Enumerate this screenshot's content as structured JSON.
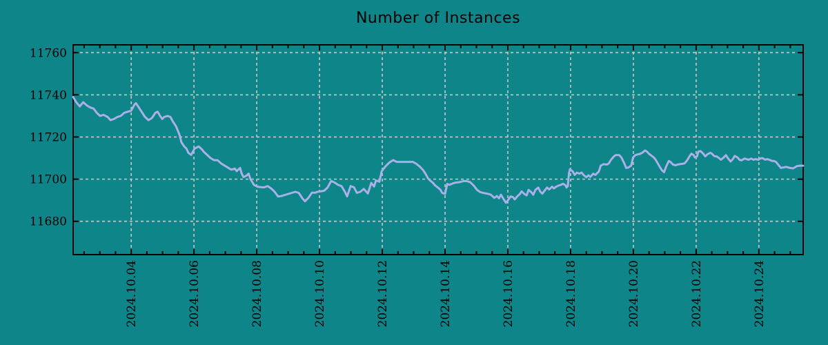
{
  "page": {
    "title": "Number of Instances"
  },
  "colors": {
    "background": "#0e8588",
    "line": "#aab0e8",
    "grid": "#c9c9c9",
    "axis": "#000000",
    "text": "#000000"
  },
  "chart_data": {
    "type": "line",
    "title": "Number of Instances",
    "xlabel": "",
    "ylabel": "",
    "grid": true,
    "legend_position": "none",
    "x_axis": {
      "unit": "date",
      "tick_labels": [
        "2024.10.04",
        "2024.10.06",
        "2024.10.08",
        "2024.10.10",
        "2024.10.12",
        "2024.10.14",
        "2024.10.16",
        "2024.10.18",
        "2024.10.20",
        "2024.10.22",
        "2024.10.24"
      ],
      "tick_days": [
        4,
        6,
        8,
        10,
        12,
        14,
        16,
        18,
        20,
        22,
        24
      ],
      "minor_tick_step_days": 0.5,
      "xlim_days": [
        2.15,
        25.41
      ]
    },
    "y_axis": {
      "tick_labels": [
        "11680",
        "11700",
        "11720",
        "11740",
        "11760"
      ],
      "ticks": [
        11680,
        11700,
        11720,
        11740,
        11760
      ],
      "ylim": [
        11664.2,
        11763.7
      ]
    },
    "series": [
      {
        "name": "Number of Instances",
        "color": "#aab0e8",
        "points_day_value": [
          [
            2.15,
            11739
          ],
          [
            2.25,
            11736.5
          ],
          [
            2.36,
            11734.5
          ],
          [
            2.47,
            11736.5
          ],
          [
            2.58,
            11735
          ],
          [
            2.69,
            11734
          ],
          [
            2.8,
            11733.5
          ],
          [
            2.9,
            11731.5
          ],
          [
            3.01,
            11730
          ],
          [
            3.12,
            11730.5
          ],
          [
            3.25,
            11729.5
          ],
          [
            3.34,
            11728
          ],
          [
            3.45,
            11728.5
          ],
          [
            3.56,
            11729.5
          ],
          [
            3.67,
            11730
          ],
          [
            3.78,
            11731.5
          ],
          [
            3.89,
            11732
          ],
          [
            4.0,
            11732.5
          ],
          [
            4.11,
            11735.5
          ],
          [
            4.15,
            11736
          ],
          [
            4.22,
            11734.5
          ],
          [
            4.33,
            11732
          ],
          [
            4.44,
            11729.5
          ],
          [
            4.55,
            11728
          ],
          [
            4.66,
            11729
          ],
          [
            4.77,
            11731.5
          ],
          [
            4.84,
            11732
          ],
          [
            4.92,
            11730
          ],
          [
            4.99,
            11728.5
          ],
          [
            5.05,
            11729.5
          ],
          [
            5.16,
            11730
          ],
          [
            5.25,
            11729.5
          ],
          [
            5.32,
            11727.5
          ],
          [
            5.43,
            11725
          ],
          [
            5.54,
            11721
          ],
          [
            5.6,
            11717.5
          ],
          [
            5.69,
            11715.5
          ],
          [
            5.76,
            11714.5
          ],
          [
            5.82,
            11712.5
          ],
          [
            5.91,
            11711.5
          ],
          [
            6.02,
            11714.5
          ],
          [
            6.15,
            11715.5
          ],
          [
            6.26,
            11714
          ],
          [
            6.31,
            11713
          ],
          [
            6.42,
            11711.5
          ],
          [
            6.53,
            11710
          ],
          [
            6.64,
            11709
          ],
          [
            6.75,
            11709
          ],
          [
            6.86,
            11707.5
          ],
          [
            6.97,
            11706.5
          ],
          [
            7.08,
            11705.5
          ],
          [
            7.19,
            11704.5
          ],
          [
            7.3,
            11705
          ],
          [
            7.36,
            11703.8
          ],
          [
            7.47,
            11705.3
          ],
          [
            7.52,
            11702.6
          ],
          [
            7.58,
            11701
          ],
          [
            7.67,
            11701.6
          ],
          [
            7.74,
            11702.6
          ],
          [
            7.8,
            11700
          ],
          [
            7.91,
            11697.3
          ],
          [
            8.02,
            11696.4
          ],
          [
            8.13,
            11696.2
          ],
          [
            8.24,
            11696.1
          ],
          [
            8.35,
            11696.7
          ],
          [
            8.46,
            11695.6
          ],
          [
            8.57,
            11694
          ],
          [
            8.68,
            11691.8
          ],
          [
            8.79,
            11692
          ],
          [
            8.9,
            11692.5
          ],
          [
            9.01,
            11693
          ],
          [
            9.12,
            11693.5
          ],
          [
            9.23,
            11694
          ],
          [
            9.34,
            11693.5
          ],
          [
            9.45,
            11691
          ],
          [
            9.54,
            11689.5
          ],
          [
            9.65,
            11691.2
          ],
          [
            9.76,
            11693.6
          ],
          [
            9.87,
            11693.6
          ],
          [
            9.93,
            11694
          ],
          [
            10.04,
            11694.2
          ],
          [
            10.15,
            11694.5
          ],
          [
            10.26,
            11696.1
          ],
          [
            10.37,
            11699.1
          ],
          [
            10.48,
            11698.4
          ],
          [
            10.59,
            11697.3
          ],
          [
            10.7,
            11696.7
          ],
          [
            10.81,
            11694
          ],
          [
            10.88,
            11691.8
          ],
          [
            10.99,
            11696.7
          ],
          [
            11.1,
            11696.1
          ],
          [
            11.19,
            11693.5
          ],
          [
            11.3,
            11694
          ],
          [
            11.41,
            11695.4
          ],
          [
            11.54,
            11693.2
          ],
          [
            11.65,
            11698.2
          ],
          [
            11.74,
            11696.5
          ],
          [
            11.8,
            11699.4
          ],
          [
            11.91,
            11698.8
          ],
          [
            11.98,
            11703.7
          ],
          [
            12.07,
            11705.4
          ],
          [
            12.13,
            11706.5
          ],
          [
            12.24,
            11708.1
          ],
          [
            12.35,
            11709
          ],
          [
            12.46,
            11708.2
          ],
          [
            12.57,
            11708.2
          ],
          [
            12.68,
            11708.2
          ],
          [
            12.79,
            11708.2
          ],
          [
            12.97,
            11708.2
          ],
          [
            13.08,
            11707.3
          ],
          [
            13.19,
            11706
          ],
          [
            13.3,
            11704.3
          ],
          [
            13.39,
            11702.2
          ],
          [
            13.45,
            11700.5
          ],
          [
            13.52,
            11699.4
          ],
          [
            13.61,
            11698.3
          ],
          [
            13.67,
            11697.2
          ],
          [
            13.78,
            11695.9
          ],
          [
            13.85,
            11695
          ],
          [
            13.91,
            11693.5
          ],
          [
            14.0,
            11693
          ],
          [
            14.07,
            11697.7
          ],
          [
            14.14,
            11697.3
          ],
          [
            14.25,
            11698
          ],
          [
            14.36,
            11698.4
          ],
          [
            14.47,
            11698.6
          ],
          [
            14.58,
            11699.1
          ],
          [
            14.69,
            11699.1
          ],
          [
            14.8,
            11698.6
          ],
          [
            14.91,
            11697
          ],
          [
            15.02,
            11694.9
          ],
          [
            15.13,
            11693.8
          ],
          [
            15.24,
            11693.4
          ],
          [
            15.35,
            11693.1
          ],
          [
            15.46,
            11692.6
          ],
          [
            15.57,
            11691.1
          ],
          [
            15.65,
            11692
          ],
          [
            15.72,
            11690.9
          ],
          [
            15.78,
            11692.6
          ],
          [
            15.87,
            11690.4
          ],
          [
            15.94,
            11688.8
          ],
          [
            16.0,
            11689.9
          ],
          [
            16.09,
            11691.8
          ],
          [
            16.16,
            11691.5
          ],
          [
            16.22,
            11690.4
          ],
          [
            16.31,
            11692
          ],
          [
            16.38,
            11692.9
          ],
          [
            16.44,
            11694.2
          ],
          [
            16.53,
            11692.9
          ],
          [
            16.6,
            11692.3
          ],
          [
            16.66,
            11694.9
          ],
          [
            16.75,
            11693.8
          ],
          [
            16.81,
            11692.6
          ],
          [
            16.88,
            11694.9
          ],
          [
            16.97,
            11696
          ],
          [
            17.03,
            11694.2
          ],
          [
            17.1,
            11693.1
          ],
          [
            17.19,
            11694.9
          ],
          [
            17.25,
            11696
          ],
          [
            17.32,
            11695.1
          ],
          [
            17.41,
            11696.4
          ],
          [
            17.47,
            11695.6
          ],
          [
            17.54,
            11696.4
          ],
          [
            17.62,
            11697
          ],
          [
            17.69,
            11697.3
          ],
          [
            17.76,
            11697.8
          ],
          [
            17.84,
            11697
          ],
          [
            17.87,
            11696
          ],
          [
            17.91,
            11696.7
          ],
          [
            17.95,
            11703.1
          ],
          [
            17.98,
            11704.7
          ],
          [
            18.07,
            11703.6
          ],
          [
            18.13,
            11702
          ],
          [
            18.2,
            11703.1
          ],
          [
            18.28,
            11702.6
          ],
          [
            18.35,
            11703.1
          ],
          [
            18.41,
            11702
          ],
          [
            18.5,
            11700.9
          ],
          [
            18.57,
            11701.8
          ],
          [
            18.63,
            11701.1
          ],
          [
            18.72,
            11702.6
          ],
          [
            18.79,
            11702
          ],
          [
            18.9,
            11703.6
          ],
          [
            18.96,
            11706.4
          ],
          [
            19.05,
            11707.1
          ],
          [
            19.16,
            11706.9
          ],
          [
            19.22,
            11707.5
          ],
          [
            19.29,
            11709.2
          ],
          [
            19.38,
            11710.8
          ],
          [
            19.44,
            11711.4
          ],
          [
            19.55,
            11711.4
          ],
          [
            19.62,
            11710.3
          ],
          [
            19.71,
            11707.5
          ],
          [
            19.77,
            11705.3
          ],
          [
            19.84,
            11705.5
          ],
          [
            19.93,
            11706.4
          ],
          [
            19.99,
            11710.3
          ],
          [
            20.06,
            11711.4
          ],
          [
            20.15,
            11711.8
          ],
          [
            20.21,
            11712
          ],
          [
            20.28,
            11712.5
          ],
          [
            20.37,
            11713.6
          ],
          [
            20.43,
            11713.1
          ],
          [
            20.5,
            11712
          ],
          [
            20.58,
            11711.1
          ],
          [
            20.65,
            11710.3
          ],
          [
            20.71,
            11709.2
          ],
          [
            20.82,
            11706.4
          ],
          [
            20.91,
            11704.2
          ],
          [
            20.98,
            11703.3
          ],
          [
            21.04,
            11705.8
          ],
          [
            21.13,
            11708.6
          ],
          [
            21.19,
            11708.1
          ],
          [
            21.26,
            11706.9
          ],
          [
            21.35,
            11706.6
          ],
          [
            21.41,
            11706.9
          ],
          [
            21.48,
            11707.1
          ],
          [
            21.57,
            11707.3
          ],
          [
            21.63,
            11707.5
          ],
          [
            21.7,
            11708.6
          ],
          [
            21.79,
            11710.8
          ],
          [
            21.85,
            11712.1
          ],
          [
            21.92,
            11711.4
          ],
          [
            21.96,
            11710.3
          ],
          [
            22.03,
            11710.8
          ],
          [
            22.07,
            11713.1
          ],
          [
            22.14,
            11713.3
          ],
          [
            22.23,
            11712
          ],
          [
            22.29,
            11710.8
          ],
          [
            22.36,
            11711.8
          ],
          [
            22.45,
            11712.5
          ],
          [
            22.51,
            11712
          ],
          [
            22.58,
            11710.9
          ],
          [
            22.66,
            11710.7
          ],
          [
            22.73,
            11710
          ],
          [
            22.79,
            11709.2
          ],
          [
            22.88,
            11710.3
          ],
          [
            22.95,
            11711.4
          ],
          [
            23.01,
            11710
          ],
          [
            23.1,
            11708.4
          ],
          [
            23.17,
            11709.5
          ],
          [
            23.23,
            11711
          ],
          [
            23.32,
            11710.3
          ],
          [
            23.38,
            11709.2
          ],
          [
            23.45,
            11708.9
          ],
          [
            23.54,
            11709.8
          ],
          [
            23.6,
            11709.5
          ],
          [
            23.67,
            11709.2
          ],
          [
            23.76,
            11709.8
          ],
          [
            23.82,
            11709.2
          ],
          [
            23.89,
            11709.5
          ],
          [
            23.98,
            11709.2
          ],
          [
            24.04,
            11709.8
          ],
          [
            24.11,
            11710
          ],
          [
            24.2,
            11709.2
          ],
          [
            24.26,
            11709.5
          ],
          [
            24.33,
            11709.2
          ],
          [
            24.42,
            11708.6
          ],
          [
            24.48,
            11708.6
          ],
          [
            24.55,
            11708.1
          ],
          [
            24.64,
            11706.4
          ],
          [
            24.7,
            11705.3
          ],
          [
            24.77,
            11705.5
          ],
          [
            24.86,
            11705.8
          ],
          [
            24.92,
            11705.6
          ],
          [
            24.99,
            11705.3
          ],
          [
            25.08,
            11705.1
          ],
          [
            25.14,
            11705.5
          ],
          [
            25.21,
            11706.2
          ],
          [
            25.3,
            11706.4
          ],
          [
            25.41,
            11706.4
          ]
        ]
      }
    ]
  }
}
